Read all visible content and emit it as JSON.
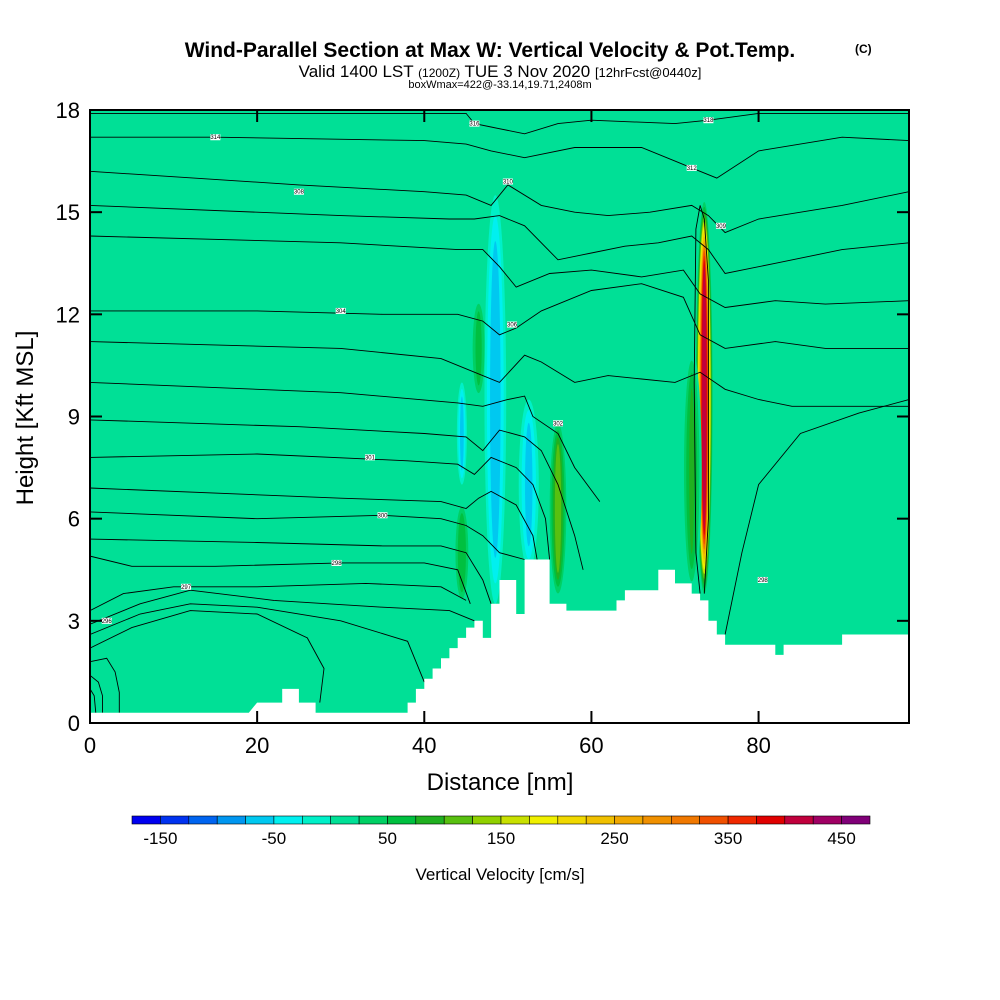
{
  "header": {
    "title_main": "Wind-Parallel Section at Max W: Vertical Velocity & Pot.Temp.",
    "title_mark": "(C)",
    "valid_prefix": "Valid 1400 LST",
    "valid_utc": "(1200Z)",
    "valid_date": "TUE 3 Nov 2020",
    "forecast": "[12hrFcst@0440z]",
    "box_info": "boxWmax=422@-33.14,19.71,2408m"
  },
  "chart_data": {
    "type": "heatmap",
    "xlabel": "Distance [nm]",
    "ylabel": "Height [Kft MSL]",
    "xlim": [
      0,
      98
    ],
    "ylim": [
      0,
      18
    ],
    "xticks": [
      0,
      20,
      40,
      60,
      80
    ],
    "yticks": [
      0,
      3,
      6,
      9,
      12,
      15,
      18
    ],
    "background_w": 0,
    "terrain_kft": [
      [
        0,
        0.3
      ],
      [
        10,
        0.3
      ],
      [
        19,
        0.3
      ],
      [
        20,
        0.6
      ],
      [
        23,
        0.6
      ],
      [
        23,
        1
      ],
      [
        25,
        1
      ],
      [
        25,
        0.6
      ],
      [
        27,
        0.6
      ],
      [
        27,
        0.3
      ],
      [
        38,
        0.3
      ],
      [
        38,
        0.6
      ],
      [
        39,
        0.6
      ],
      [
        39,
        1
      ],
      [
        40,
        1
      ],
      [
        40,
        1.3
      ],
      [
        41,
        1.3
      ],
      [
        41,
        1.6
      ],
      [
        42,
        1.6
      ],
      [
        42,
        1.9
      ],
      [
        43,
        1.9
      ],
      [
        43,
        2.2
      ],
      [
        44,
        2.2
      ],
      [
        44,
        2.5
      ],
      [
        45,
        2.5
      ],
      [
        45,
        2.8
      ],
      [
        46,
        2.8
      ],
      [
        46,
        3
      ],
      [
        47,
        3
      ],
      [
        47,
        2.5
      ],
      [
        48,
        2.5
      ],
      [
        48,
        3.5
      ],
      [
        49,
        3.5
      ],
      [
        49,
        4.2
      ],
      [
        51,
        4.2
      ],
      [
        51,
        3.2
      ],
      [
        52,
        3.2
      ],
      [
        52,
        4.8
      ],
      [
        55,
        4.8
      ],
      [
        55,
        3.5
      ],
      [
        57,
        3.5
      ],
      [
        57,
        3.3
      ],
      [
        63,
        3.3
      ],
      [
        63,
        3.6
      ],
      [
        64,
        3.6
      ],
      [
        64,
        3.9
      ],
      [
        68,
        3.9
      ],
      [
        68,
        4.5
      ],
      [
        70,
        4.5
      ],
      [
        70,
        4.1
      ],
      [
        72,
        4.1
      ],
      [
        72,
        3.8
      ],
      [
        73,
        3.8
      ],
      [
        73,
        3.6
      ],
      [
        74,
        3.6
      ],
      [
        74,
        3
      ],
      [
        75,
        3
      ],
      [
        75,
        2.6
      ],
      [
        76,
        2.6
      ],
      [
        76,
        2.3
      ],
      [
        82,
        2.3
      ],
      [
        82,
        2
      ],
      [
        83,
        2
      ],
      [
        83,
        2.3
      ],
      [
        90,
        2.3
      ],
      [
        90,
        2.6
      ],
      [
        98,
        2.6
      ],
      [
        98,
        2.3
      ]
    ],
    "features": [
      {
        "kind": "updraft",
        "x": 73.5,
        "y_base": 3.8,
        "y_top": 15.3,
        "half_width": 1.0,
        "peak_w": 422
      },
      {
        "kind": "updraft",
        "x": 56,
        "y_base": 3.6,
        "y_top": 9.0,
        "half_width": 1.2,
        "peak_w": 110
      },
      {
        "kind": "updraft",
        "x": 44.5,
        "y_base": 3.5,
        "y_top": 6.5,
        "half_width": 1.0,
        "peak_w": 70
      },
      {
        "kind": "updraft",
        "x": 72,
        "y_base": 3.8,
        "y_top": 11.0,
        "half_width": 1.2,
        "peak_w": 80
      },
      {
        "kind": "updraft",
        "x": 46.5,
        "y_base": 9.5,
        "y_top": 12.5,
        "half_width": 1.0,
        "peak_w": 60
      },
      {
        "kind": "downdraft",
        "x": 48.5,
        "y_base": 3.5,
        "y_top": 15.5,
        "half_width": 1.3,
        "peak_w": -75
      },
      {
        "kind": "downdraft",
        "x": 52.5,
        "y_base": 4.5,
        "y_top": 9.5,
        "half_width": 1.2,
        "peak_w": -60
      },
      {
        "kind": "downdraft",
        "x": 44.5,
        "y_base": 7.0,
        "y_top": 10.0,
        "half_width": 0.6,
        "peak_w": -60
      }
    ],
    "isentropes_kft": [
      [
        [
          0,
          17.9
        ],
        [
          45,
          17.9
        ],
        [
          46,
          17.6
        ],
        [
          48,
          17.5
        ],
        [
          52,
          17.3
        ],
        [
          56,
          17.6
        ],
        [
          60,
          17.7
        ],
        [
          70,
          17.6
        ],
        [
          74,
          17.7
        ],
        [
          80,
          17.9
        ],
        [
          98,
          17.9
        ]
      ],
      [
        [
          0,
          17.2
        ],
        [
          15,
          17.2
        ],
        [
          40,
          17.1
        ],
        [
          45,
          17.0
        ],
        [
          48,
          16.8
        ],
        [
          52,
          16.6
        ],
        [
          58,
          16.9
        ],
        [
          66,
          16.9
        ],
        [
          70,
          16.5
        ],
        [
          72,
          16.3
        ],
        [
          75,
          16.0
        ],
        [
          80,
          16.8
        ],
        [
          90,
          17.2
        ],
        [
          98,
          17.1
        ]
      ],
      [
        [
          0,
          16.2
        ],
        [
          25,
          15.8
        ],
        [
          40,
          15.6
        ],
        [
          45,
          15.5
        ],
        [
          48,
          15.2
        ],
        [
          50,
          15.8
        ],
        [
          54,
          15.2
        ],
        [
          58,
          15.0
        ],
        [
          62,
          14.9
        ],
        [
          67,
          15.0
        ],
        [
          72,
          15.2
        ],
        [
          74,
          14.9
        ],
        [
          76,
          14.4
        ],
        [
          80,
          14.8
        ],
        [
          90,
          15.2
        ],
        [
          98,
          15.6
        ]
      ],
      [
        [
          0,
          15.2
        ],
        [
          30,
          14.9
        ],
        [
          43,
          14.8
        ],
        [
          46,
          14.8
        ],
        [
          49,
          14.9
        ],
        [
          52,
          14.6
        ],
        [
          56,
          13.6
        ],
        [
          60,
          13.8
        ],
        [
          64,
          14.0
        ],
        [
          68,
          14.1
        ],
        [
          72,
          14.3
        ],
        [
          74,
          13.9
        ],
        [
          76,
          13.2
        ],
        [
          82,
          13.5
        ],
        [
          90,
          13.9
        ],
        [
          98,
          14.1
        ]
      ],
      [
        [
          0,
          14.3
        ],
        [
          30,
          14.1
        ],
        [
          44,
          13.9
        ],
        [
          47,
          13.9
        ],
        [
          49,
          13.4
        ],
        [
          51,
          12.8
        ],
        [
          55,
          13.2
        ],
        [
          60,
          13.3
        ],
        [
          66,
          13.1
        ],
        [
          71,
          13.3
        ],
        [
          73,
          12.6
        ],
        [
          76,
          12.2
        ],
        [
          82,
          12.4
        ],
        [
          88,
          12.3
        ],
        [
          98,
          12.4
        ]
      ],
      [
        [
          0,
          12.1
        ],
        [
          20,
          12.1
        ],
        [
          35,
          12.0
        ],
        [
          44,
          12.0
        ],
        [
          47,
          11.8
        ],
        [
          49,
          11.4
        ],
        [
          51,
          11.6
        ],
        [
          54,
          12.1
        ],
        [
          60,
          12.7
        ],
        [
          66,
          12.9
        ],
        [
          71,
          12.5
        ],
        [
          73,
          11.4
        ],
        [
          76,
          11.0
        ],
        [
          82,
          11.2
        ],
        [
          88,
          11.0
        ],
        [
          98,
          11.0
        ]
      ],
      [
        [
          0,
          11.2
        ],
        [
          30,
          11.0
        ],
        [
          42,
          10.7
        ],
        [
          46,
          10.3
        ],
        [
          49,
          10.0
        ],
        [
          52,
          10.8
        ],
        [
          54,
          10.6
        ],
        [
          58,
          10.0
        ],
        [
          62,
          10.2
        ],
        [
          66,
          10.1
        ],
        [
          70,
          10.0
        ],
        [
          73,
          10.3
        ],
        [
          76,
          9.8
        ],
        [
          80,
          9.5
        ],
        [
          84,
          9.3
        ],
        [
          98,
          9.3
        ]
      ],
      [
        [
          0,
          10.0
        ],
        [
          30,
          9.7
        ],
        [
          44,
          9.4
        ],
        [
          47,
          9.3
        ],
        [
          50,
          9.5
        ],
        [
          52,
          9.6
        ],
        [
          53,
          9.0
        ],
        [
          56,
          8.5
        ],
        [
          58,
          7.5
        ],
        [
          61,
          6.5
        ]
      ],
      [
        [
          0,
          8.9
        ],
        [
          25,
          8.7
        ],
        [
          40,
          8.5
        ],
        [
          45,
          8.4
        ],
        [
          47,
          8.0
        ],
        [
          49,
          8.6
        ],
        [
          52,
          8.4
        ],
        [
          54,
          8.0
        ],
        [
          56,
          7.0
        ],
        [
          58,
          5.5
        ],
        [
          59,
          4.5
        ]
      ],
      [
        [
          0,
          7.8
        ],
        [
          20,
          7.9
        ],
        [
          38,
          7.7
        ],
        [
          44,
          7.6
        ],
        [
          46,
          7.3
        ],
        [
          48,
          7.8
        ],
        [
          51,
          7.5
        ],
        [
          53,
          7.0
        ],
        [
          54.5,
          6.0
        ],
        [
          55,
          4.8
        ]
      ],
      [
        [
          0,
          6.9
        ],
        [
          30,
          6.6
        ],
        [
          42,
          6.5
        ],
        [
          45,
          6.3
        ],
        [
          46.5,
          6.6
        ],
        [
          48,
          6.8
        ],
        [
          51,
          6.4
        ],
        [
          53,
          5.5
        ],
        [
          53.5,
          4.8
        ]
      ],
      [
        [
          0,
          6.2
        ],
        [
          20,
          6.0
        ],
        [
          35,
          6.1
        ],
        [
          42,
          6.0
        ],
        [
          45,
          5.8
        ],
        [
          47,
          5.5
        ],
        [
          49,
          5.0
        ],
        [
          52,
          4.8
        ]
      ],
      [
        [
          0,
          5.4
        ],
        [
          20,
          5.3
        ],
        [
          35,
          5.2
        ],
        [
          42,
          5.2
        ],
        [
          45,
          5.0
        ],
        [
          47,
          4.2
        ],
        [
          48,
          3.5
        ]
      ],
      [
        [
          0,
          4.9
        ],
        [
          5,
          4.6
        ],
        [
          15,
          4.6
        ],
        [
          30,
          4.7
        ],
        [
          40,
          4.7
        ],
        [
          44,
          4.5
        ],
        [
          45.5,
          3.5
        ]
      ],
      [
        [
          0,
          3.3
        ],
        [
          4,
          3.8
        ],
        [
          10,
          4.0
        ],
        [
          20,
          4.0
        ],
        [
          33,
          4.1
        ],
        [
          42,
          4.0
        ],
        [
          45,
          3.6
        ]
      ],
      [
        [
          0,
          2.9
        ],
        [
          6,
          3.5
        ],
        [
          12,
          3.9
        ],
        [
          22,
          3.6
        ],
        [
          35,
          3.4
        ],
        [
          43,
          3.3
        ],
        [
          46,
          3.0
        ]
      ],
      [
        [
          0,
          2.6
        ],
        [
          6,
          3.2
        ],
        [
          12,
          3.5
        ],
        [
          20,
          3.4
        ],
        [
          30,
          3.0
        ],
        [
          38,
          2.4
        ],
        [
          40,
          1.2
        ]
      ],
      [
        [
          0,
          2.2
        ],
        [
          5,
          2.8
        ],
        [
          12,
          3.3
        ],
        [
          20,
          3.2
        ],
        [
          26,
          2.5
        ],
        [
          28,
          1.6
        ],
        [
          27.5,
          0.6
        ]
      ],
      [
        [
          0,
          1.8
        ],
        [
          2,
          1.9
        ],
        [
          3,
          1.5
        ],
        [
          3.5,
          0.9
        ],
        [
          3.5,
          0.3
        ]
      ],
      [
        [
          0,
          1.4
        ],
        [
          1,
          1.2
        ],
        [
          1.5,
          0.8
        ],
        [
          1.5,
          0.3
        ]
      ],
      [
        [
          0,
          1.0
        ],
        [
          0.5,
          0.8
        ],
        [
          0.7,
          0.3
        ]
      ],
      [
        [
          76,
          2.6
        ],
        [
          78,
          5.0
        ],
        [
          80,
          7.0
        ],
        [
          85,
          8.5
        ],
        [
          92,
          9.1
        ],
        [
          98,
          9.5
        ]
      ],
      [
        [
          73.5,
          3.8
        ],
        [
          74,
          6.0
        ],
        [
          74,
          10.0
        ],
        [
          74,
          13.0
        ],
        [
          73.5,
          14.8
        ],
        [
          73,
          15.2
        ],
        [
          72.5,
          14.5
        ],
        [
          72.3,
          10.0
        ],
        [
          72.5,
          5.0
        ],
        [
          73,
          3.8
        ]
      ]
    ],
    "colorbar": {
      "label": "Vertical Velocity [cm/s]",
      "tick_values": [
        "-150",
        "-50",
        "50",
        "150",
        "250",
        "350",
        "450"
      ],
      "tick_min": -150,
      "tick_max": 450,
      "bin_edges": [
        -175,
        -150,
        -125,
        -100,
        -75,
        -50,
        -25,
        0,
        25,
        50,
        75,
        100,
        125,
        150,
        175,
        200,
        225,
        250,
        275,
        300,
        325,
        350,
        375,
        400,
        425,
        450,
        475
      ],
      "colors": [
        "#0000f0",
        "#0032f0",
        "#0064f0",
        "#0096f0",
        "#00c8f0",
        "#00f0f0",
        "#00f0c8",
        "#00e096",
        "#00d064",
        "#00c040",
        "#20b020",
        "#58c010",
        "#90d000",
        "#c8e000",
        "#f0f000",
        "#f0d800",
        "#f0c000",
        "#f0a800",
        "#f09000",
        "#f07800",
        "#f05000",
        "#f02800",
        "#e00000",
        "#c0003c",
        "#a00064",
        "#800078"
      ]
    },
    "contour_labels": [
      {
        "x": 15,
        "y": 17.2,
        "text": "314"
      },
      {
        "x": 25,
        "y": 15.6,
        "text": "308"
      },
      {
        "x": 30,
        "y": 12.1,
        "text": "304"
      },
      {
        "x": 33.5,
        "y": 7.8,
        "text": "301"
      },
      {
        "x": 35,
        "y": 6.1,
        "text": "300"
      },
      {
        "x": 29.5,
        "y": 4.7,
        "text": "298"
      },
      {
        "x": 11.5,
        "y": 4.0,
        "text": "297"
      },
      {
        "x": 2,
        "y": 3.0,
        "text": "296"
      },
      {
        "x": 46,
        "y": 17.6,
        "text": "316"
      },
      {
        "x": 50,
        "y": 15.9,
        "text": "310"
      },
      {
        "x": 50.5,
        "y": 11.7,
        "text": "306"
      },
      {
        "x": 56,
        "y": 8.8,
        "text": "302"
      },
      {
        "x": 72,
        "y": 16.3,
        "text": "312"
      },
      {
        "x": 74,
        "y": 17.7,
        "text": "318"
      },
      {
        "x": 75.5,
        "y": 14.6,
        "text": "309"
      },
      {
        "x": 80.5,
        "y": 4.2,
        "text": "298"
      }
    ]
  }
}
